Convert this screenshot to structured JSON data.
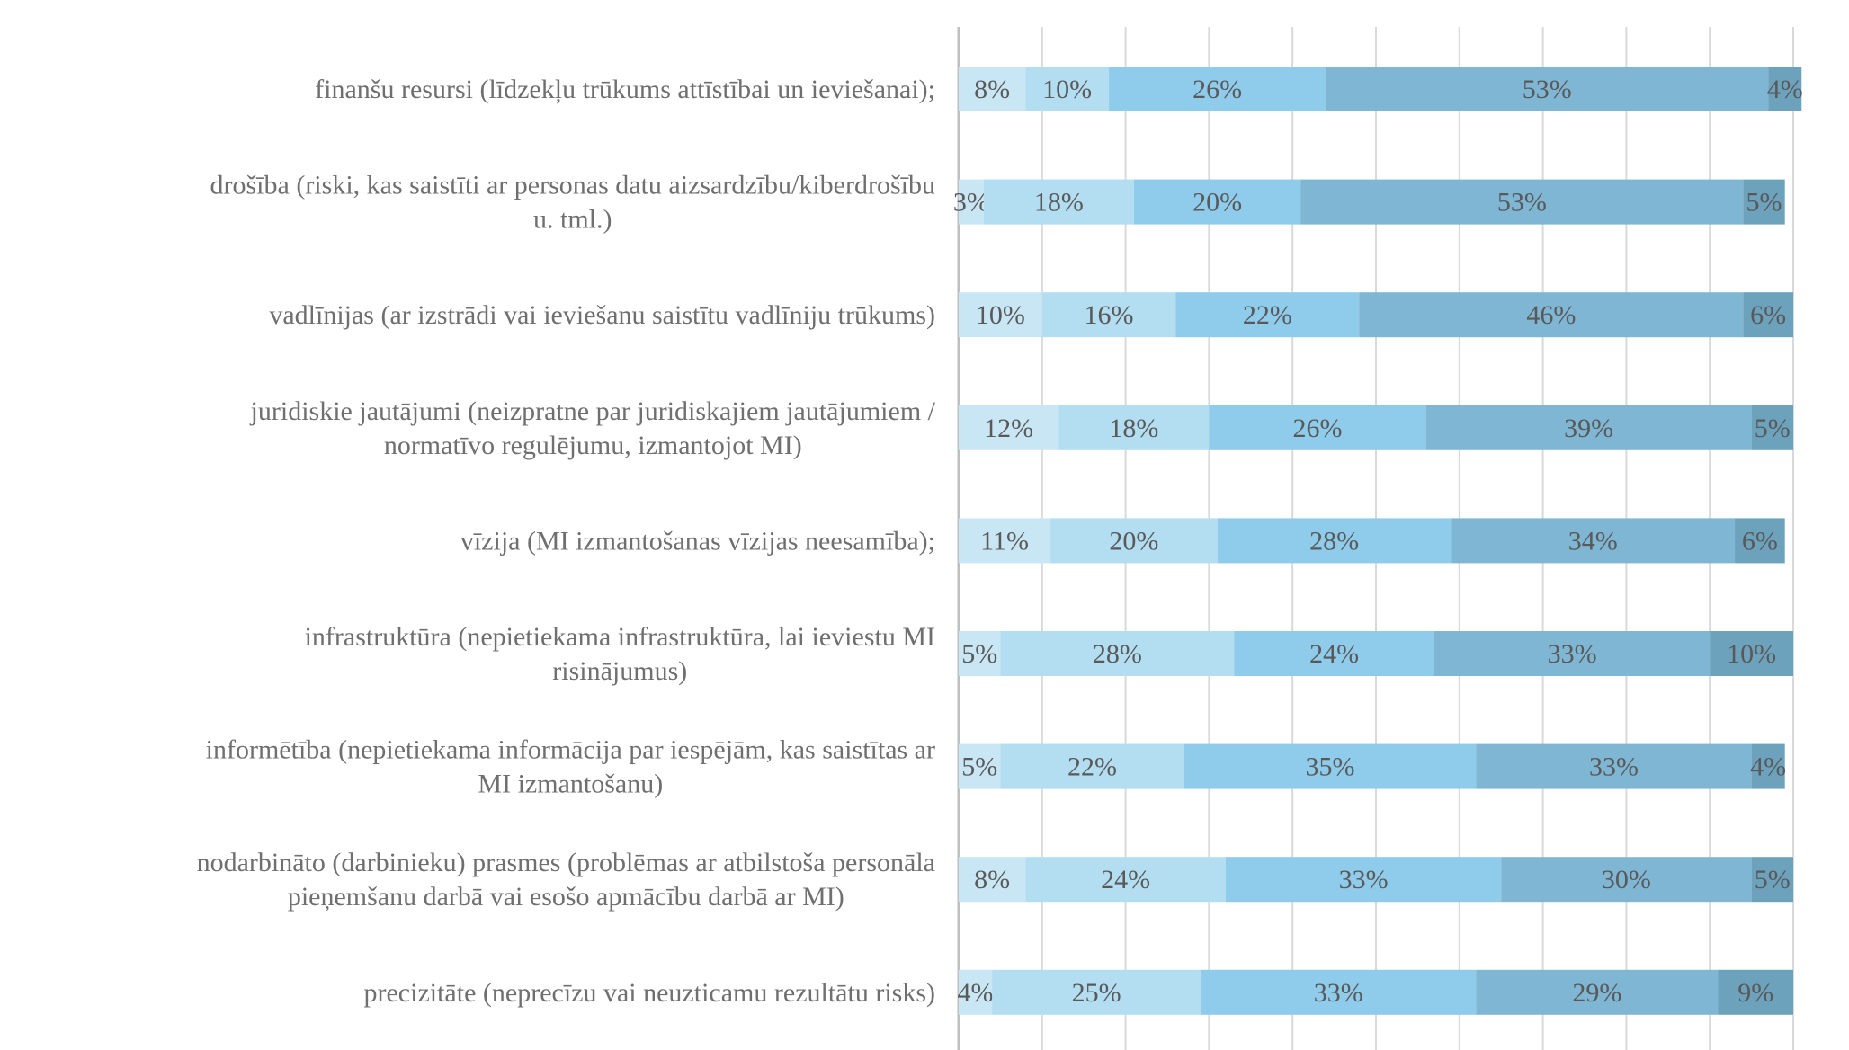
{
  "chart_data": {
    "type": "bar",
    "orientation": "horizontal",
    "stacked": "100%",
    "categories": [
      "finanšu resursi (līdzekļu trūkums attīstībai un ieviešanai);",
      "drošība (riski, kas saistīti ar personas datu aizsardzību/kiberdrošību u. tml.)",
      "vadlīnijas (ar izstrādi vai ieviešanu saistītu vadlīniju trūkums)",
      "juridiskie jautājumi (neizpratne par juridiskajiem jautājumiem / normatīvo regulējumu, izmantojot MI)",
      "vīzija (MI izmantošanas vīzijas neesamība);",
      "infrastruktūra (nepietiekama infrastruktūra, lai ieviestu MI risinājumus)",
      "informētība (nepietiekama informācija par iespējām, kas saistītas ar MI izmantošanu)",
      "nodarbināto (darbinieku) prasmes (problēmas ar atbilstoša personāla pieņemšanu darbā vai esošo apmācību darbā ar MI)",
      "precizitāte (neprecīzu vai neuzticamu rezultātu risks)"
    ],
    "label_lines": [
      [
        "finanšu resursi (līdzekļu trūkums attīstībai un ieviešanai);"
      ],
      [
        "drošība (riski, kas saistīti ar personas datu aizsardzību/kiberdrošību",
        "u. tml.)"
      ],
      [
        "vadlīnijas (ar izstrādi vai ieviešanu saistītu vadlīniju trūkums)"
      ],
      [
        "juridiskie jautājumi (neizpratne par juridiskajiem jautājumiem /",
        "normatīvo regulējumu, izmantojot MI)"
      ],
      [
        "vīzija (MI izmantošanas vīzijas neesamība);"
      ],
      [
        "infrastruktūra (nepietiekama infrastruktūra, lai ieviestu MI",
        "risinājumus)"
      ],
      [
        "informētība (nepietiekama informācija par iespējām, kas saistītas ar",
        "MI izmantošanu)"
      ],
      [
        "nodarbināto (darbinieku) prasmes (problēmas ar atbilstoša personāla",
        "pieņemšanu darbā vai esošo apmācību darbā ar MI)"
      ],
      [
        "precizitāte (neprecīzu vai neuzticamu rezultātu risks)"
      ]
    ],
    "series": [
      {
        "color": "#c9e6f4",
        "values": [
          8,
          3,
          10,
          12,
          11,
          5,
          5,
          8,
          4
        ]
      },
      {
        "color": "#b3ddf1",
        "values": [
          10,
          18,
          16,
          18,
          20,
          28,
          22,
          24,
          25
        ]
      },
      {
        "color": "#8fcbea",
        "values": [
          26,
          20,
          22,
          26,
          28,
          24,
          35,
          33,
          33
        ]
      },
      {
        "color": "#7fb6d3",
        "values": [
          53,
          53,
          46,
          39,
          34,
          33,
          33,
          30,
          29
        ]
      },
      {
        "color": "#6da2bd",
        "values": [
          4,
          5,
          6,
          5,
          6,
          10,
          4,
          5,
          9
        ]
      }
    ],
    "value_suffix": "%",
    "xlim": [
      0,
      100
    ],
    "gridlines": 10,
    "grid": true,
    "legend": "none"
  }
}
